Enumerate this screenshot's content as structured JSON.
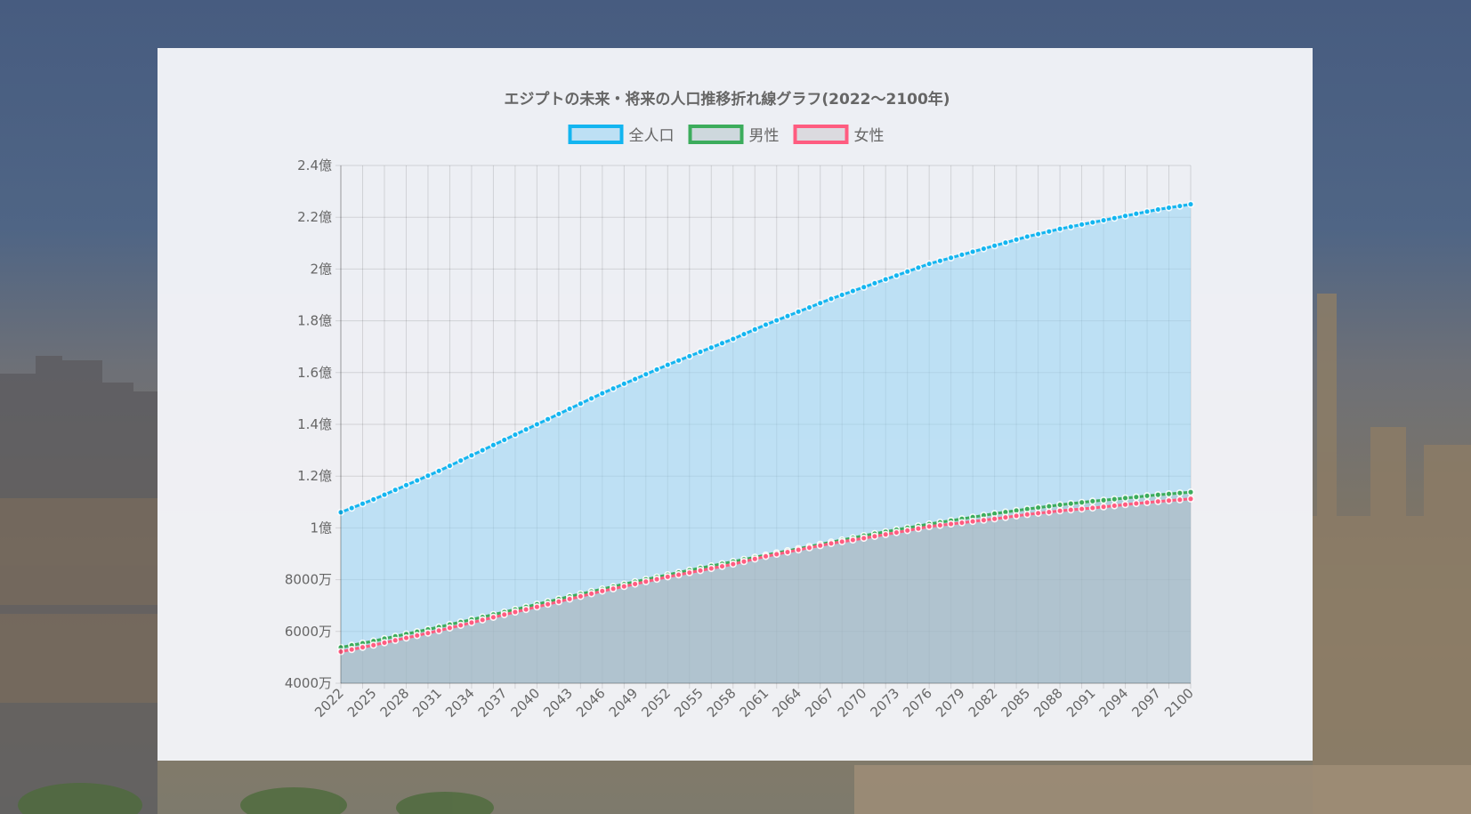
{
  "chart_data": {
    "type": "area",
    "title": "エジプトの未来・将来の人口推移折れ線グラフ(2022～2100年)",
    "xlabel": "",
    "ylabel": "",
    "x_start": 2022,
    "x_end": 2100,
    "x_tick_labels": [
      "2022",
      "2025",
      "2028",
      "2031",
      "2034",
      "2037",
      "2040",
      "2043",
      "2046",
      "2049",
      "2052",
      "2055",
      "2058",
      "2061",
      "2064",
      "2067",
      "2070",
      "2073",
      "2076",
      "2079",
      "2082",
      "2085",
      "2088",
      "2091",
      "2094",
      "2097",
      "2100"
    ],
    "y_tick_labels": [
      "2.4億",
      "2.2億",
      "2億",
      "1.8億",
      "1.6億",
      "1.4億",
      "1.2億",
      "1億",
      "8000万",
      "6000万",
      "4000万"
    ],
    "ylim": [
      40000000,
      240000000
    ],
    "grid": true,
    "legend_position": "top",
    "series": [
      {
        "name": "全人口",
        "color": "#13b5f0",
        "fill": "rgba(150, 212, 244, 0.55)",
        "anchors": [
          [
            2022,
            106000000
          ],
          [
            2025,
            111000000
          ],
          [
            2028,
            116500000
          ],
          [
            2031,
            122000000
          ],
          [
            2034,
            128000000
          ],
          [
            2037,
            134000000
          ],
          [
            2040,
            140000000
          ],
          [
            2043,
            146000000
          ],
          [
            2046,
            152000000
          ],
          [
            2049,
            157500000
          ],
          [
            2052,
            163000000
          ],
          [
            2055,
            168000000
          ],
          [
            2058,
            173000000
          ],
          [
            2061,
            178500000
          ],
          [
            2064,
            183500000
          ],
          [
            2067,
            188500000
          ],
          [
            2070,
            193000000
          ],
          [
            2073,
            197500000
          ],
          [
            2076,
            202000000
          ],
          [
            2079,
            205500000
          ],
          [
            2082,
            209000000
          ],
          [
            2085,
            212500000
          ],
          [
            2088,
            215500000
          ],
          [
            2091,
            218000000
          ],
          [
            2094,
            220500000
          ],
          [
            2097,
            223000000
          ],
          [
            2100,
            225000000
          ]
        ]
      },
      {
        "name": "男性",
        "color": "#3cac5c",
        "fill": "rgba(150, 175, 178, 0.35)",
        "anchors": [
          [
            2022,
            53800000
          ],
          [
            2025,
            56300000
          ],
          [
            2028,
            59000000
          ],
          [
            2031,
            61700000
          ],
          [
            2034,
            64600000
          ],
          [
            2037,
            67500000
          ],
          [
            2040,
            70500000
          ],
          [
            2043,
            73500000
          ],
          [
            2046,
            76400000
          ],
          [
            2049,
            79200000
          ],
          [
            2052,
            81900000
          ],
          [
            2055,
            84500000
          ],
          [
            2058,
            87000000
          ],
          [
            2061,
            89500000
          ],
          [
            2064,
            92000000
          ],
          [
            2067,
            94500000
          ],
          [
            2070,
            97000000
          ],
          [
            2073,
            99300000
          ],
          [
            2076,
            101500000
          ],
          [
            2079,
            103500000
          ],
          [
            2082,
            105500000
          ],
          [
            2085,
            107300000
          ],
          [
            2088,
            108900000
          ],
          [
            2091,
            110300000
          ],
          [
            2094,
            111500000
          ],
          [
            2097,
            112800000
          ],
          [
            2100,
            113800000
          ]
        ]
      },
      {
        "name": "女性",
        "color": "#ff5c80",
        "fill": "rgba(180, 168, 176, 0.30)",
        "anchors": [
          [
            2022,
            52200000
          ],
          [
            2025,
            54700000
          ],
          [
            2028,
            57500000
          ],
          [
            2031,
            60300000
          ],
          [
            2034,
            63400000
          ],
          [
            2037,
            66500000
          ],
          [
            2040,
            69500000
          ],
          [
            2043,
            72500000
          ],
          [
            2046,
            75600000
          ],
          [
            2049,
            78300000
          ],
          [
            2052,
            81100000
          ],
          [
            2055,
            83500000
          ],
          [
            2058,
            86000000
          ],
          [
            2061,
            89000000
          ],
          [
            2064,
            91500000
          ],
          [
            2067,
            94000000
          ],
          [
            2070,
            96000000
          ],
          [
            2073,
            98200000
          ],
          [
            2076,
            100500000
          ],
          [
            2079,
            102000000
          ],
          [
            2082,
            103500000
          ],
          [
            2085,
            105200000
          ],
          [
            2088,
            106600000
          ],
          [
            2091,
            107700000
          ],
          [
            2094,
            109000000
          ],
          [
            2097,
            110200000
          ],
          [
            2100,
            111200000
          ]
        ]
      }
    ]
  }
}
